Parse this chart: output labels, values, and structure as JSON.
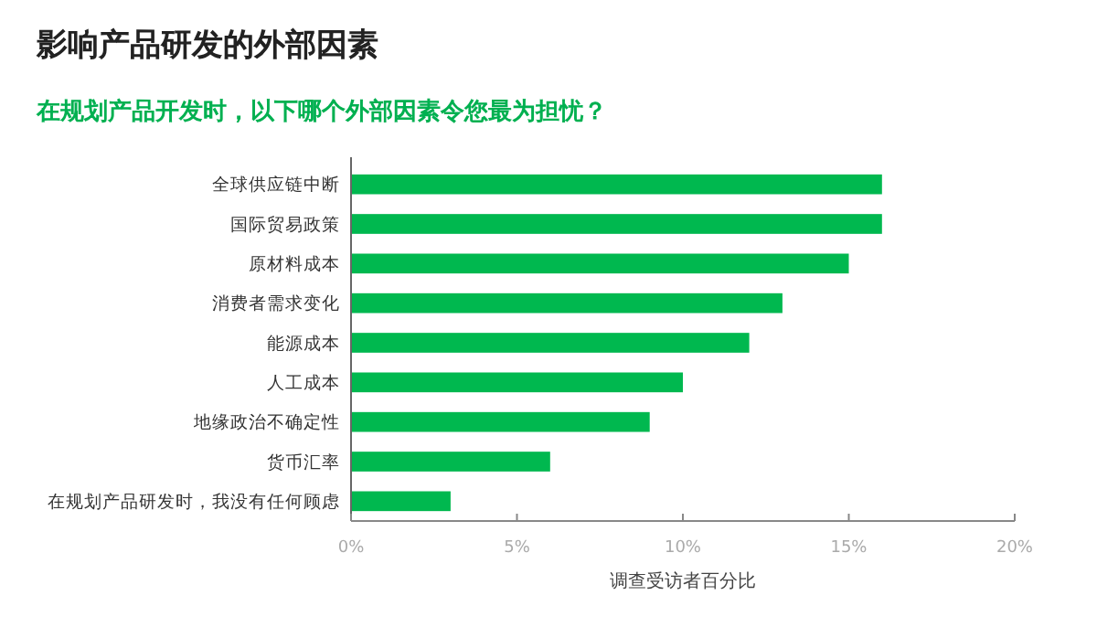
{
  "chart_data": {
    "type": "bar",
    "orientation": "horizontal",
    "title": "影响产品研发的外部因素",
    "subtitle": "在规划产品开发时，以下哪个外部因素令您最为担忧？",
    "xlabel": "调查受访者百分比",
    "categories": [
      "全球供应链中断",
      "国际贸易政策",
      "原材料成本",
      "消费者需求变化",
      "能源成本",
      "人工成本",
      "地缘政治不确定性",
      "货币汇率",
      "在规划产品研发时，我没有任何顾虑"
    ],
    "values": [
      16,
      16,
      15,
      13,
      12,
      10,
      9,
      6,
      3
    ],
    "color": "#00b84f",
    "xlim": [
      0,
      20
    ],
    "xticks": [
      {
        "value": 0,
        "label": "0%"
      },
      {
        "value": 5,
        "label": "5%"
      },
      {
        "value": 10,
        "label": "10%"
      },
      {
        "value": 15,
        "label": "15%"
      },
      {
        "value": 20,
        "label": "20%"
      }
    ],
    "grid": false
  }
}
